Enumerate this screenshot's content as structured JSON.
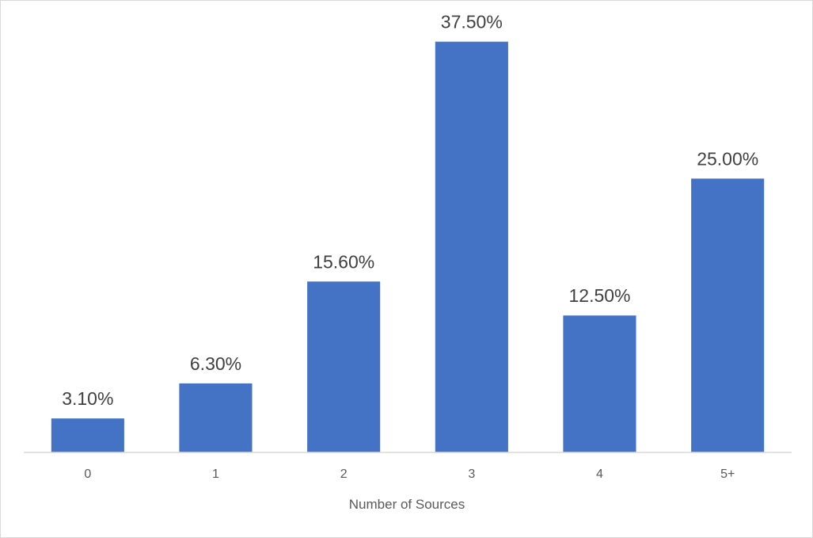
{
  "chart_data": {
    "type": "bar",
    "title": "",
    "xlabel": "Number of Sources",
    "ylabel": "",
    "categories": [
      "0",
      "1",
      "2",
      "3",
      "4",
      "5+"
    ],
    "values": [
      3.1,
      6.3,
      15.6,
      37.5,
      12.5,
      25.0
    ],
    "data_labels": [
      "3.10%",
      "6.30%",
      "15.60%",
      "37.50%",
      "12.50%",
      "25.00%"
    ],
    "ylim": [
      0,
      40
    ],
    "bar_color": "#4472C4",
    "grid": false,
    "legend": "none"
  }
}
